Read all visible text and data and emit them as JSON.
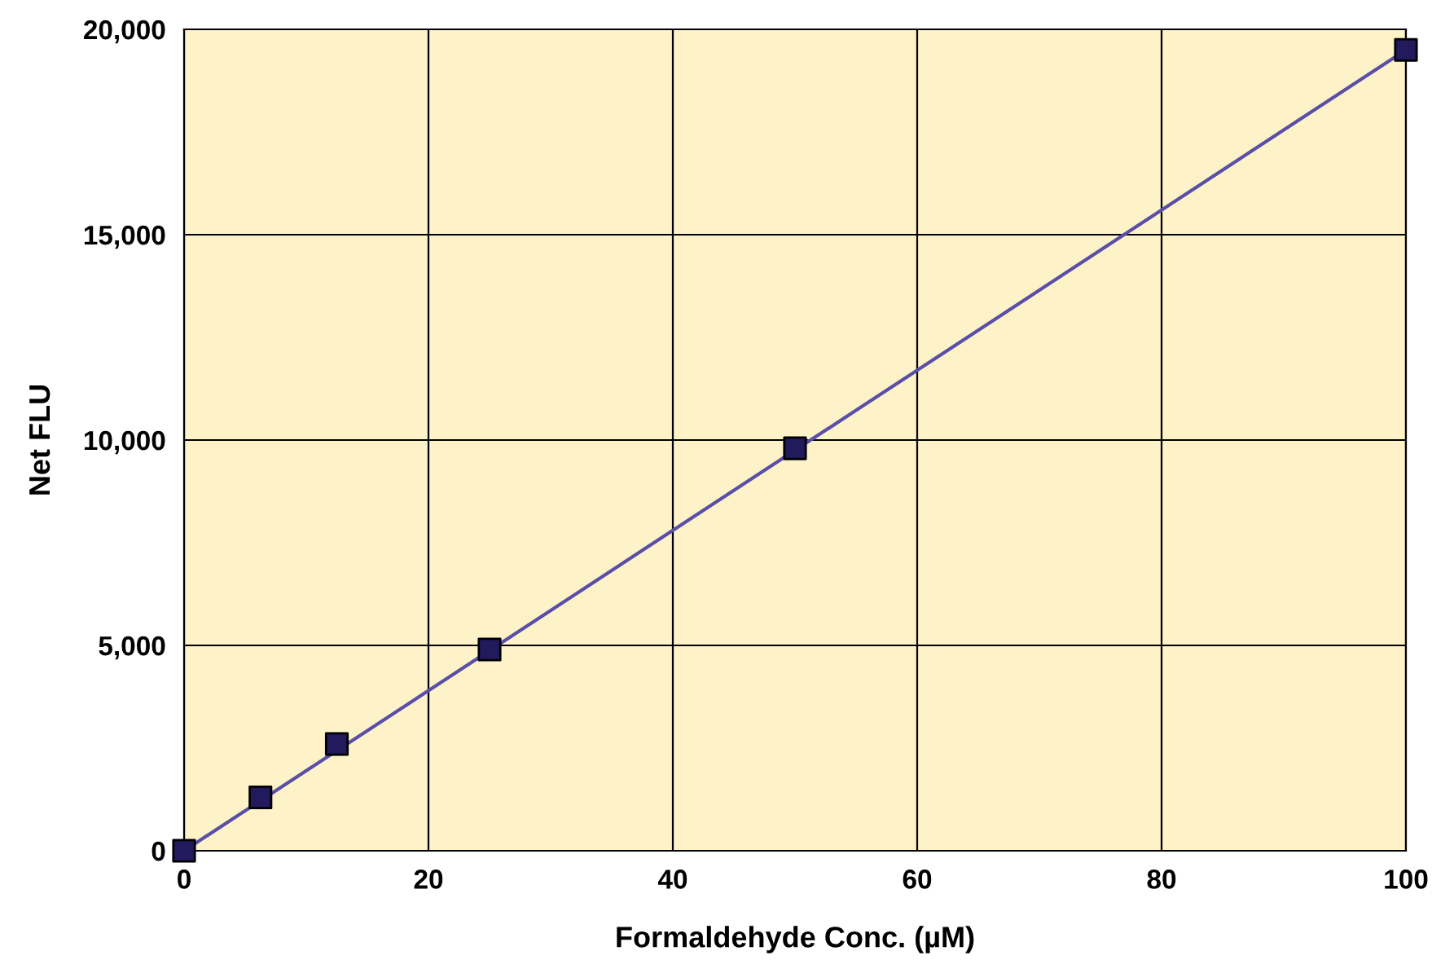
{
  "chart_data": {
    "type": "scatter",
    "xlabel": "Formaldehyde Conc. (µM)",
    "ylabel": "Net FLU",
    "series": [
      {
        "color": "#231a5e",
        "marker": "square",
        "x": [
          0,
          6.25,
          12.5,
          25,
          50,
          100
        ],
        "values": [
          0,
          1300,
          2600,
          4900,
          9800,
          19500
        ]
      },
      {
        "type": "line",
        "color": "#5a4fa8",
        "marker": "none",
        "x": [
          0,
          100
        ],
        "values": [
          0,
          19500
        ]
      }
    ],
    "xlim": [
      0,
      100
    ],
    "xticks": [
      0,
      20,
      40,
      60,
      80,
      100
    ],
    "ylim": [
      0,
      20000
    ],
    "yticks": [
      {
        "value": 0,
        "label": "0"
      },
      {
        "value": 5000,
        "label": "5,000"
      },
      {
        "value": 10000,
        "label": "10,000"
      },
      {
        "value": 15000,
        "label": "15,000"
      },
      {
        "value": 20000,
        "label": "20,000"
      }
    ],
    "grid": true
  }
}
